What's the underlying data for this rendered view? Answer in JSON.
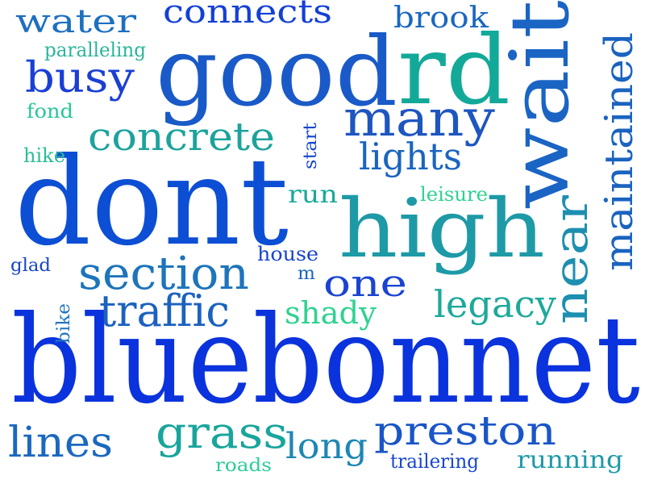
{
  "words": [
    {
      "text": "bluebonnet",
      "color": "#0a33dd"
    },
    {
      "text": "dont",
      "color": "#0d4fd4"
    },
    {
      "text": "good",
      "color": "#1a5ac8"
    },
    {
      "text": "rd",
      "color": "#13a999"
    },
    {
      "text": "wait",
      "color": "#1a64c4"
    },
    {
      "text": "high",
      "color": "#1d9aa6"
    },
    {
      "text": "many",
      "color": "#1e55c0"
    },
    {
      "text": "concrete",
      "color": "#1ca39c"
    },
    {
      "text": "lights",
      "color": "#1a64bf"
    },
    {
      "text": "maintained",
      "color": "#1a63bf"
    },
    {
      "text": "near",
      "color": "#1d8fb1"
    },
    {
      "text": "section",
      "color": "#1d74bb"
    },
    {
      "text": "traffic",
      "color": "#1b62bf"
    },
    {
      "text": "one",
      "color": "#1a44d1"
    },
    {
      "text": "legacy",
      "color": "#1ea99a"
    },
    {
      "text": "shady",
      "color": "#2fd290"
    },
    {
      "text": "water",
      "color": "#1d6fc0"
    },
    {
      "text": "connects",
      "color": "#1440d6"
    },
    {
      "text": "brook",
      "color": "#1b67c1"
    },
    {
      "text": "busy",
      "color": "#1a3fd4"
    },
    {
      "text": "paralleling",
      "color": "#2bb59c"
    },
    {
      "text": "fond",
      "color": "#27c79a"
    },
    {
      "text": "hike",
      "color": "#2abe95"
    },
    {
      "text": "start",
      "color": "#1748cc"
    },
    {
      "text": "run",
      "color": "#1aa89a"
    },
    {
      "text": "leisure",
      "color": "#2fd290"
    },
    {
      "text": "glad",
      "color": "#1746c9"
    },
    {
      "text": "house",
      "color": "#1744cc"
    },
    {
      "text": "m",
      "color": "#1b63bf"
    },
    {
      "text": "bike",
      "color": "#1f74c2"
    },
    {
      "text": "lines",
      "color": "#1b68c0"
    },
    {
      "text": "grass",
      "color": "#19a59d"
    },
    {
      "text": "long",
      "color": "#1d87b5"
    },
    {
      "text": "preston",
      "color": "#1a55c8"
    },
    {
      "text": "roads",
      "color": "#2bcc98"
    },
    {
      "text": "trailering",
      "color": "#1746cf"
    },
    {
      "text": "running",
      "color": "#1e9aa8"
    }
  ]
}
